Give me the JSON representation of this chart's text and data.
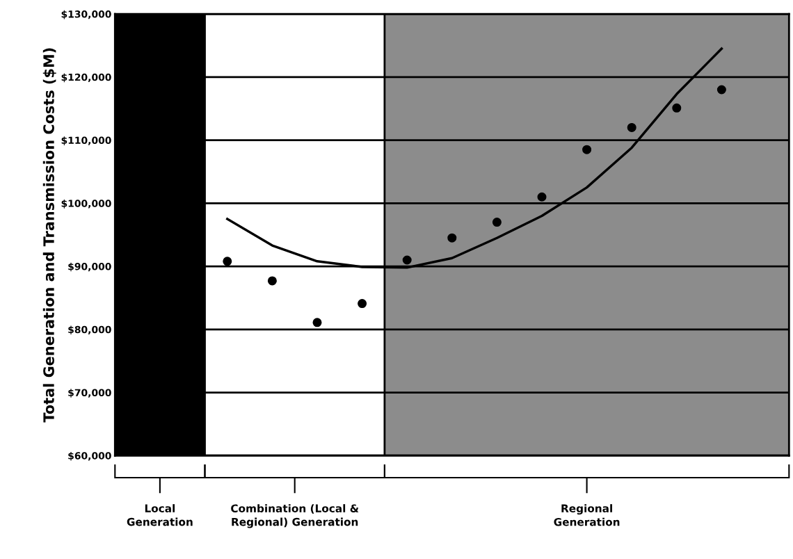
{
  "chart_data": {
    "type": "scatter",
    "ylabel": "Total Generation and Transmission Costs ($M)",
    "categories": [
      null,
      null,
      null,
      null,
      null,
      null,
      null,
      null,
      null,
      null,
      null,
      null,
      null,
      null,
      null
    ],
    "series": [
      {
        "color": "#000000",
        "marker": "circle",
        "values": [
          null,
          null,
          90800,
          87700,
          81100,
          84100,
          null,
          null,
          null,
          null,
          null,
          null,
          null,
          null,
          null
        ]
      },
      {
        "color": "#000000",
        "marker": "circle",
        "values": [
          null,
          null,
          null,
          null,
          null,
          null,
          91000,
          94500,
          97000,
          101000,
          108500,
          112000,
          115100,
          118000,
          null
        ]
      },
      {
        "type": "line",
        "color": "#000000",
        "marker": "none",
        "line_style": "solid",
        "values": [
          null,
          null,
          97500,
          93300,
          90800,
          89900,
          89800,
          91300,
          94500,
          98000,
          102500,
          108800,
          117300,
          124500,
          null
        ]
      }
    ],
    "ylim": [
      60000,
      130000
    ],
    "yticks": [
      {
        "value": 60000,
        "label": "$60,000"
      },
      {
        "value": 70000,
        "label": "$70,000"
      },
      {
        "value": 80000,
        "label": "$80,000"
      },
      {
        "value": 90000,
        "label": "$90,000"
      },
      {
        "value": 100000,
        "label": "$100,000"
      },
      {
        "value": 110000,
        "label": "$110,000"
      },
      {
        "value": 120000,
        "label": "$120,000"
      },
      {
        "value": 130000,
        "label": "$130,000"
      }
    ],
    "grid": "y",
    "tick_labels": "y",
    "annotations": [
      "Local\nGeneration",
      "Combination (Local &\nRegional) Generation",
      "Regional\nGeneration"
    ]
  }
}
